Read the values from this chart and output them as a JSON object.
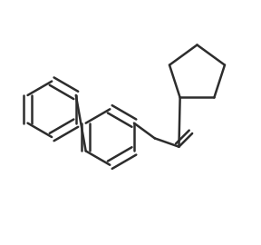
{
  "background_color": "#ffffff",
  "line_color": "#2d2d2d",
  "line_width": 1.8,
  "figsize": [
    2.88,
    2.7
  ],
  "dpi": 100
}
